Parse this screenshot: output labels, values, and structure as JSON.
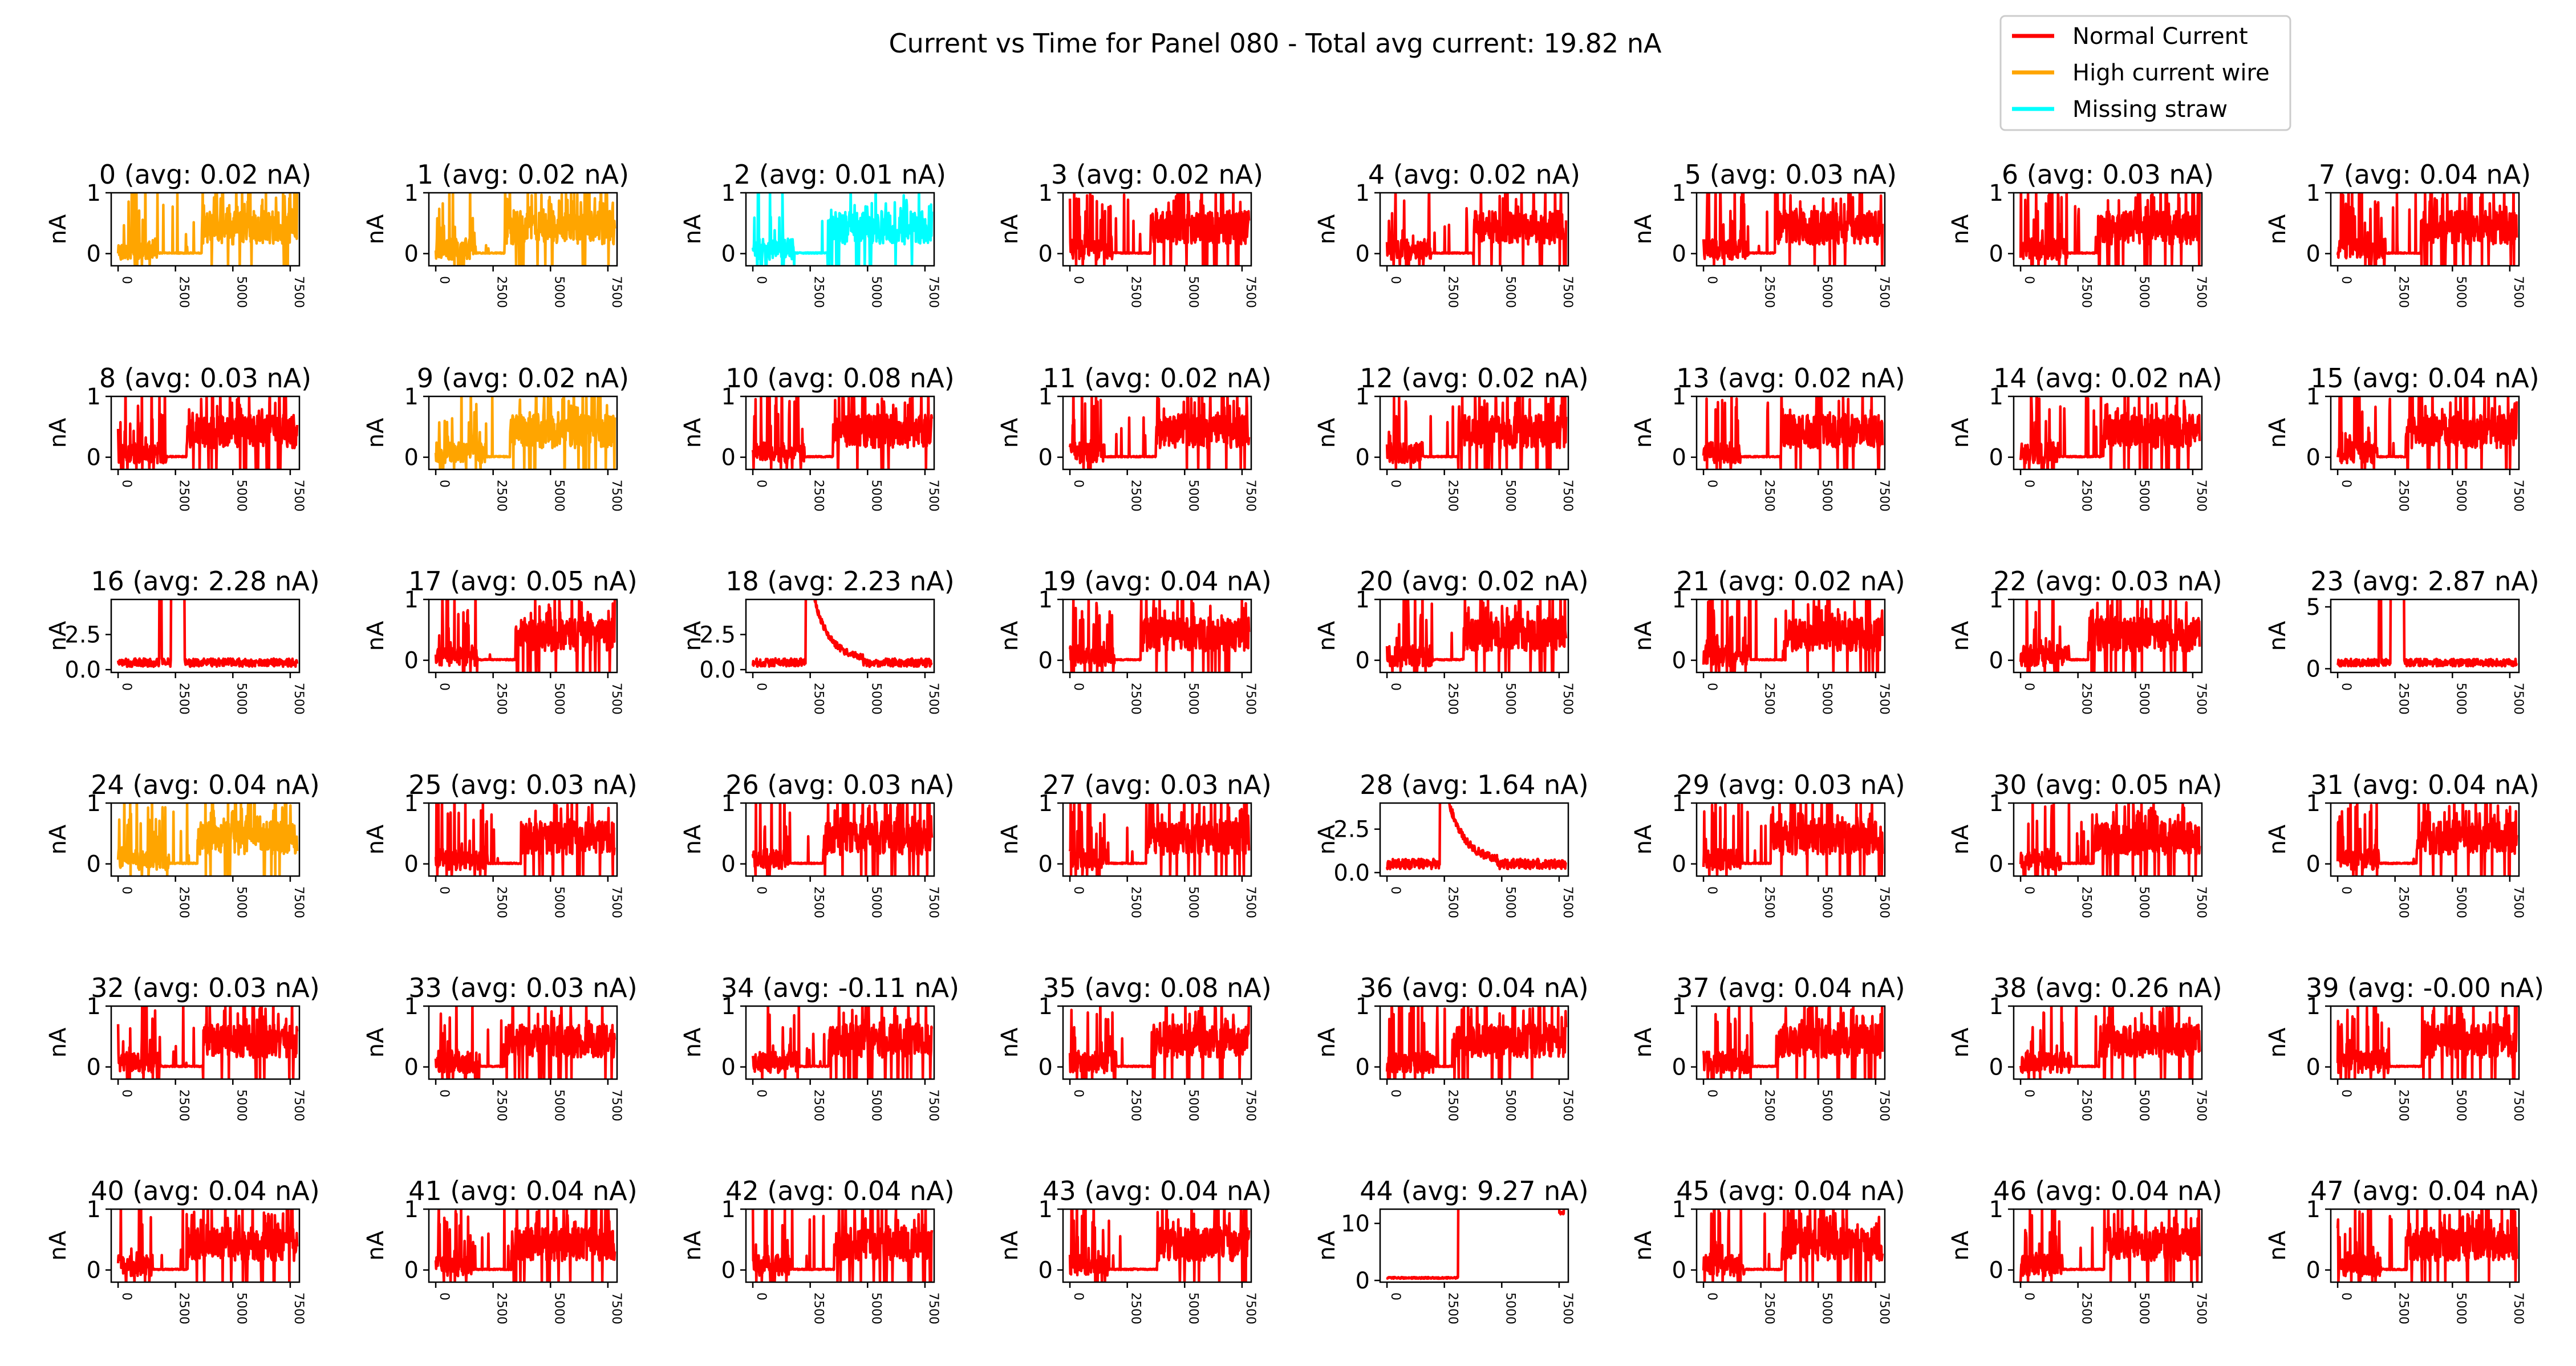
{
  "title": "Current vs Time for Panel 080 - Total avg current: 19.82 nA",
  "legend": {
    "position": "top-right",
    "items": [
      {
        "label": "Normal Current",
        "color": "#ff0000"
      },
      {
        "label": "High current wire",
        "color": "#ffa500"
      },
      {
        "label": "Missing straw",
        "color": "#00ffff"
      }
    ]
  },
  "chart_data": {
    "type": "line",
    "layout": {
      "rows": 6,
      "cols": 8
    },
    "ylabel": "nA",
    "xticks": [
      "0",
      "2500",
      "5000",
      "7500"
    ],
    "xlim": [
      -300,
      7900
    ],
    "panels": [
      {
        "label": "0 (avg: 0.02 nA)",
        "status": "high",
        "ylim": [
          -0.2,
          1
        ],
        "yticks": [
          "0",
          "1"
        ],
        "pattern": "normal"
      },
      {
        "label": "1 (avg: 0.02 nA)",
        "status": "high",
        "ylim": [
          -0.2,
          1
        ],
        "yticks": [
          "0",
          "1"
        ],
        "pattern": "normal"
      },
      {
        "label": "2 (avg: 0.01 nA)",
        "status": "missing",
        "ylim": [
          -0.2,
          1
        ],
        "yticks": [
          "0",
          "1"
        ],
        "pattern": "normal"
      },
      {
        "label": "3 (avg: 0.02 nA)",
        "status": "normal",
        "ylim": [
          -0.2,
          1
        ],
        "yticks": [
          "0",
          "1"
        ],
        "pattern": "normal"
      },
      {
        "label": "4 (avg: 0.02 nA)",
        "status": "normal",
        "ylim": [
          -0.2,
          1
        ],
        "yticks": [
          "0",
          "1"
        ],
        "pattern": "normal"
      },
      {
        "label": "5 (avg: 0.03 nA)",
        "status": "normal",
        "ylim": [
          -0.2,
          1
        ],
        "yticks": [
          "0",
          "1"
        ],
        "pattern": "normal"
      },
      {
        "label": "6 (avg: 0.03 nA)",
        "status": "normal",
        "ylim": [
          -0.2,
          1
        ],
        "yticks": [
          "0",
          "1"
        ],
        "pattern": "normal"
      },
      {
        "label": "7 (avg: 0.04 nA)",
        "status": "normal",
        "ylim": [
          -0.2,
          1
        ],
        "yticks": [
          "0",
          "1"
        ],
        "pattern": "normal"
      },
      {
        "label": "8 (avg: 0.03 nA)",
        "status": "normal",
        "ylim": [
          -0.2,
          1
        ],
        "yticks": [
          "0",
          "1"
        ],
        "pattern": "normal"
      },
      {
        "label": "9 (avg: 0.02 nA)",
        "status": "high",
        "ylim": [
          -0.2,
          1
        ],
        "yticks": [
          "0",
          "1"
        ],
        "pattern": "normal"
      },
      {
        "label": "10 (avg: 0.08 nA)",
        "status": "normal",
        "ylim": [
          -0.2,
          1
        ],
        "yticks": [
          "0",
          "1"
        ],
        "pattern": "normal"
      },
      {
        "label": "11 (avg: 0.02 nA)",
        "status": "normal",
        "ylim": [
          -0.2,
          1
        ],
        "yticks": [
          "0",
          "1"
        ],
        "pattern": "normal"
      },
      {
        "label": "12 (avg: 0.02 nA)",
        "status": "normal",
        "ylim": [
          -0.2,
          1
        ],
        "yticks": [
          "0",
          "1"
        ],
        "pattern": "normal"
      },
      {
        "label": "13 (avg: 0.02 nA)",
        "status": "normal",
        "ylim": [
          -0.2,
          1
        ],
        "yticks": [
          "0",
          "1"
        ],
        "pattern": "normal"
      },
      {
        "label": "14 (avg: 0.02 nA)",
        "status": "normal",
        "ylim": [
          -0.2,
          1
        ],
        "yticks": [
          "0",
          "1"
        ],
        "pattern": "normal"
      },
      {
        "label": "15 (avg: 0.04 nA)",
        "status": "normal",
        "ylim": [
          -0.2,
          1
        ],
        "yticks": [
          "0",
          "1"
        ],
        "pattern": "normal"
      },
      {
        "label": "16 (avg: 2.28 nA)",
        "status": "normal",
        "ylim": [
          -0.2,
          5
        ],
        "yticks": [
          "0.0",
          "2.5"
        ],
        "ytickvals": [
          0,
          2.5
        ],
        "pattern": "spike"
      },
      {
        "label": "17 (avg: 0.05 nA)",
        "status": "normal",
        "ylim": [
          -0.2,
          1
        ],
        "yticks": [
          "0",
          "1"
        ],
        "pattern": "normal"
      },
      {
        "label": "18 (avg: 2.23 nA)",
        "status": "normal",
        "ylim": [
          -0.2,
          5
        ],
        "yticks": [
          "0.0",
          "2.5"
        ],
        "ytickvals": [
          0,
          2.5
        ],
        "pattern": "spike_decay"
      },
      {
        "label": "19 (avg: 0.04 nA)",
        "status": "normal",
        "ylim": [
          -0.2,
          1
        ],
        "yticks": [
          "0",
          "1"
        ],
        "pattern": "normal"
      },
      {
        "label": "20 (avg: 0.02 nA)",
        "status": "normal",
        "ylim": [
          -0.2,
          1
        ],
        "yticks": [
          "0",
          "1"
        ],
        "pattern": "normal"
      },
      {
        "label": "21 (avg: 0.02 nA)",
        "status": "normal",
        "ylim": [
          -0.2,
          1
        ],
        "yticks": [
          "0",
          "1"
        ],
        "pattern": "normal"
      },
      {
        "label": "22 (avg: 0.03 nA)",
        "status": "normal",
        "ylim": [
          -0.2,
          1
        ],
        "yticks": [
          "0",
          "1"
        ],
        "pattern": "normal"
      },
      {
        "label": "23 (avg: 2.87 nA)",
        "status": "normal",
        "ylim": [
          -0.3,
          5.6
        ],
        "yticks": [
          "0",
          "5"
        ],
        "ytickvals": [
          0,
          5
        ],
        "pattern": "spike"
      },
      {
        "label": "24 (avg: 0.04 nA)",
        "status": "high",
        "ylim": [
          -0.2,
          1
        ],
        "yticks": [
          "0",
          "1"
        ],
        "pattern": "normal"
      },
      {
        "label": "25 (avg: 0.03 nA)",
        "status": "normal",
        "ylim": [
          -0.2,
          1
        ],
        "yticks": [
          "0",
          "1"
        ],
        "pattern": "normal"
      },
      {
        "label": "26 (avg: 0.03 nA)",
        "status": "normal",
        "ylim": [
          -0.2,
          1
        ],
        "yticks": [
          "0",
          "1"
        ],
        "pattern": "normal"
      },
      {
        "label": "27 (avg: 0.03 nA)",
        "status": "normal",
        "ylim": [
          -0.2,
          1
        ],
        "yticks": [
          "0",
          "1"
        ],
        "pattern": "normal"
      },
      {
        "label": "28 (avg: 1.64 nA)",
        "status": "normal",
        "ylim": [
          -0.2,
          4
        ],
        "yticks": [
          "0.0",
          "2.5"
        ],
        "ytickvals": [
          0,
          2.5
        ],
        "pattern": "spike_decay"
      },
      {
        "label": "29 (avg: 0.03 nA)",
        "status": "normal",
        "ylim": [
          -0.2,
          1
        ],
        "yticks": [
          "0",
          "1"
        ],
        "pattern": "normal"
      },
      {
        "label": "30 (avg: 0.05 nA)",
        "status": "normal",
        "ylim": [
          -0.2,
          1
        ],
        "yticks": [
          "0",
          "1"
        ],
        "pattern": "normal"
      },
      {
        "label": "31 (avg: 0.04 nA)",
        "status": "normal",
        "ylim": [
          -0.2,
          1
        ],
        "yticks": [
          "0",
          "1"
        ],
        "pattern": "normal"
      },
      {
        "label": "32 (avg: 0.03 nA)",
        "status": "normal",
        "ylim": [
          -0.2,
          1
        ],
        "yticks": [
          "0",
          "1"
        ],
        "pattern": "normal"
      },
      {
        "label": "33 (avg: 0.03 nA)",
        "status": "normal",
        "ylim": [
          -0.2,
          1
        ],
        "yticks": [
          "0",
          "1"
        ],
        "pattern": "normal"
      },
      {
        "label": "34 (avg: -0.11 nA)",
        "status": "normal",
        "ylim": [
          -0.2,
          1
        ],
        "yticks": [
          "0",
          "1"
        ],
        "pattern": "normal"
      },
      {
        "label": "35 (avg: 0.08 nA)",
        "status": "normal",
        "ylim": [
          -0.2,
          1
        ],
        "yticks": [
          "0",
          "1"
        ],
        "pattern": "normal"
      },
      {
        "label": "36 (avg: 0.04 nA)",
        "status": "normal",
        "ylim": [
          -0.2,
          1
        ],
        "yticks": [
          "0",
          "1"
        ],
        "pattern": "normal"
      },
      {
        "label": "37 (avg: 0.04 nA)",
        "status": "normal",
        "ylim": [
          -0.2,
          1
        ],
        "yticks": [
          "0",
          "1"
        ],
        "pattern": "normal"
      },
      {
        "label": "38 (avg: 0.26 nA)",
        "status": "normal",
        "ylim": [
          -0.2,
          1
        ],
        "yticks": [
          "0",
          "1"
        ],
        "pattern": "normal"
      },
      {
        "label": "39 (avg: -0.00 nA)",
        "status": "normal",
        "ylim": [
          -0.2,
          1
        ],
        "yticks": [
          "0",
          "1"
        ],
        "pattern": "normal"
      },
      {
        "label": "40 (avg: 0.04 nA)",
        "status": "normal",
        "ylim": [
          -0.2,
          1
        ],
        "yticks": [
          "0",
          "1"
        ],
        "pattern": "normal"
      },
      {
        "label": "41 (avg: 0.04 nA)",
        "status": "normal",
        "ylim": [
          -0.2,
          1
        ],
        "yticks": [
          "0",
          "1"
        ],
        "pattern": "normal"
      },
      {
        "label": "42 (avg: 0.04 nA)",
        "status": "normal",
        "ylim": [
          -0.2,
          1
        ],
        "yticks": [
          "0",
          "1"
        ],
        "pattern": "normal"
      },
      {
        "label": "43 (avg: 0.04 nA)",
        "status": "normal",
        "ylim": [
          -0.2,
          1
        ],
        "yticks": [
          "0",
          "1"
        ],
        "pattern": "normal"
      },
      {
        "label": "44 (avg: 9.27 nA)",
        "status": "normal",
        "ylim": [
          -0.3,
          12.5
        ],
        "yticks": [
          "0",
          "10"
        ],
        "ytickvals": [
          0,
          10
        ],
        "pattern": "step"
      },
      {
        "label": "45 (avg: 0.04 nA)",
        "status": "normal",
        "ylim": [
          -0.2,
          1
        ],
        "yticks": [
          "0",
          "1"
        ],
        "pattern": "normal"
      },
      {
        "label": "46 (avg: 0.04 nA)",
        "status": "normal",
        "ylim": [
          -0.2,
          1
        ],
        "yticks": [
          "0",
          "1"
        ],
        "pattern": "normal"
      },
      {
        "label": "47 (avg: 0.04 nA)",
        "status": "normal",
        "ylim": [
          -0.2,
          1
        ],
        "yticks": [
          "0",
          "1"
        ],
        "pattern": "normal"
      }
    ]
  }
}
